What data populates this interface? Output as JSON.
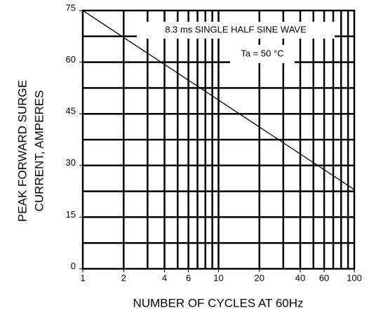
{
  "chart_data": {
    "type": "line",
    "xlabel": "NUMBER OF CYCLES AT 60Hz",
    "ylabel": [
      "PEAK FORWARD SURGE",
      "CURRENT, AMPERES"
    ],
    "annotations": [
      "8.3 ms SINGLE HALF SINE WAVE",
      "Ta = 50 °C"
    ],
    "x": [
      1,
      100
    ],
    "series": [
      {
        "color": "#000000",
        "values": [
          75,
          23
        ]
      }
    ],
    "xlim": [
      1,
      100
    ],
    "xlog": true,
    "xticks": [
      1,
      2,
      4,
      6,
      10,
      20,
      40,
      60,
      100
    ],
    "xgrid": [
      2,
      3,
      4,
      5,
      6,
      7,
      8,
      9,
      10,
      20,
      30,
      40,
      50,
      60,
      70,
      80,
      90
    ],
    "ylim": [
      0,
      75
    ],
    "yticks": [
      0,
      15,
      30,
      45,
      60,
      75
    ],
    "ygrid": [
      7.5,
      15,
      22.5,
      30,
      37.5,
      45,
      52.5,
      60,
      67.5
    ],
    "grid": true
  }
}
